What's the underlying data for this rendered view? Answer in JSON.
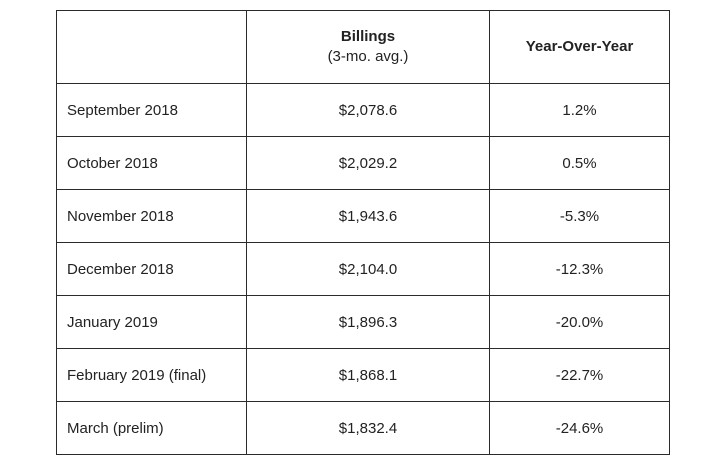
{
  "table": {
    "headers": {
      "col1": "",
      "billings_title": "Billings",
      "billings_sub": "(3-mo. avg.)",
      "yoy_title": "Year-Over-Year"
    },
    "rows": [
      {
        "month": "September 2018",
        "billings": "$2,078.6",
        "yoy": "1.2%"
      },
      {
        "month": "October 2018",
        "billings": "$2,029.2",
        "yoy": "0.5%"
      },
      {
        "month": "November 2018",
        "billings": "$1,943.6",
        "yoy": "-5.3%"
      },
      {
        "month": "December 2018",
        "billings": "$2,104.0",
        "yoy": "-12.3%"
      },
      {
        "month": "January 2019",
        "billings": "$1,896.3",
        "yoy": "-20.0%"
      },
      {
        "month": "February 2019 (final)",
        "billings": "$1,868.1",
        "yoy": "-22.7%"
      },
      {
        "month": "March (prelim)",
        "billings": "$1,832.4",
        "yoy": "-24.6%"
      }
    ]
  }
}
